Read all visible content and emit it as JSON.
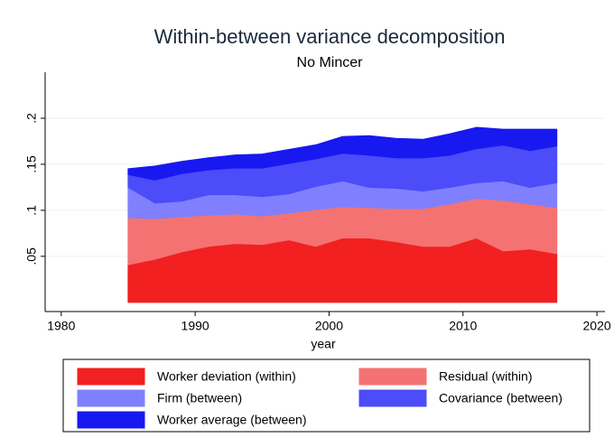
{
  "chart_data": {
    "type": "stacked_area",
    "title": "Within-between variance decomposition",
    "subtitle": "No Mincer",
    "x_label": "year",
    "x": [
      1985,
      1987,
      1989,
      1991,
      1993,
      1995,
      1997,
      1999,
      2001,
      2003,
      2005,
      2007,
      2009,
      2011,
      2013,
      2015,
      2017
    ],
    "series": [
      {
        "name": "Worker deviation (within)",
        "color": "#f22020",
        "values": [
          0.041,
          0.047,
          0.055,
          0.061,
          0.064,
          0.063,
          0.068,
          0.061,
          0.07,
          0.07,
          0.066,
          0.061,
          0.061,
          0.07,
          0.056,
          0.058,
          0.053
        ]
      },
      {
        "name": "Residual (within)",
        "color": "#f47272",
        "values": [
          0.051,
          0.044,
          0.038,
          0.034,
          0.032,
          0.031,
          0.029,
          0.04,
          0.034,
          0.033,
          0.036,
          0.041,
          0.046,
          0.043,
          0.055,
          0.049,
          0.05
        ]
      },
      {
        "name": "Firm (between)",
        "color": "#8080ff",
        "values": [
          0.033,
          0.017,
          0.017,
          0.022,
          0.021,
          0.021,
          0.021,
          0.025,
          0.028,
          0.022,
          0.022,
          0.019,
          0.018,
          0.017,
          0.021,
          0.018,
          0.027
        ]
      },
      {
        "name": "Covariance (between)",
        "color": "#4c4cf8",
        "values": [
          0.014,
          0.025,
          0.03,
          0.027,
          0.029,
          0.031,
          0.033,
          0.03,
          0.03,
          0.035,
          0.033,
          0.036,
          0.035,
          0.037,
          0.039,
          0.04,
          0.04
        ]
      },
      {
        "name": "Worker average (between)",
        "color": "#1818f0",
        "values": [
          0.006,
          0.015,
          0.013,
          0.013,
          0.014,
          0.015,
          0.015,
          0.015,
          0.018,
          0.021,
          0.021,
          0.02,
          0.023,
          0.023,
          0.017,
          0.023,
          0.018
        ]
      }
    ],
    "xlim": [
      1978.8,
      2020.6
    ],
    "xticks": [
      1980,
      1990,
      2000,
      2010,
      2020
    ],
    "ylim": [
      -0.01,
      0.25
    ],
    "yticks": [
      {
        "value": 0.05,
        "label": ".05"
      },
      {
        "value": 0.1,
        "label": ".1"
      },
      {
        "value": 0.15,
        "label": ".15"
      },
      {
        "value": 0.2,
        "label": ".2"
      }
    ],
    "grid": true,
    "legend": "bottom"
  }
}
